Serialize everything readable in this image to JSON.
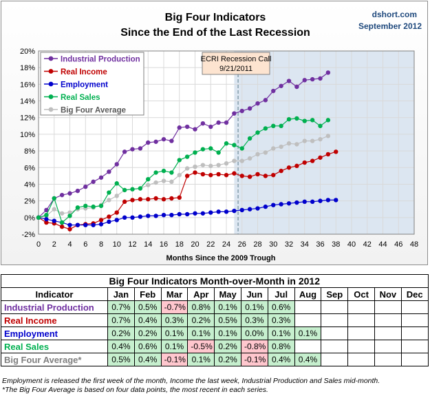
{
  "chart_data": {
    "type": "line",
    "title": "Big Four Indicators",
    "subtitle": "Since the End of the Last Recession",
    "source": "dshort.com",
    "date": "September 2012",
    "xlabel": "Months Since the 2009 Trough",
    "x_ticks": [
      "0",
      "2",
      "4",
      "6",
      "8",
      "10",
      "12",
      "14",
      "16",
      "18",
      "20",
      "22",
      "24",
      "26",
      "28",
      "30",
      "32",
      "34",
      "36",
      "38",
      "40",
      "42",
      "44",
      "46",
      "48"
    ],
    "y_ticks": [
      "20%",
      "18%",
      "16%",
      "14%",
      "12%",
      "10%",
      "8%",
      "6%",
      "4%",
      "2%",
      "0%",
      "-2%"
    ],
    "xlim": [
      0,
      48
    ],
    "ylim": [
      -2,
      20
    ],
    "annotation": {
      "label_line1": "ECRI Recession Call",
      "label_line2": "9/21/2011",
      "x": 25.5
    },
    "shaded_from_x": 25,
    "series": [
      {
        "name": "Industrial Production",
        "color": "#7030a0",
        "values": [
          0,
          0.9,
          2.3,
          2.7,
          2.9,
          3.2,
          3.7,
          4.3,
          4.8,
          5.5,
          6.4,
          7.9,
          8.2,
          8.3,
          9.0,
          9.1,
          9.4,
          9.2,
          10.8,
          10.9,
          10.6,
          11.3,
          10.9,
          11.4,
          11.4,
          12.5,
          12.8,
          13.1,
          13.7,
          14.1,
          15.2,
          15.8,
          16.4,
          15.7,
          16.5,
          16.6,
          16.7,
          17.4
        ]
      },
      {
        "name": "Real Income",
        "color": "#c00000",
        "values": [
          0,
          -0.6,
          -0.7,
          -1.1,
          -1.4,
          -0.9,
          -0.8,
          -0.7,
          -0.3,
          0.1,
          0.6,
          1.9,
          2.1,
          2.2,
          2.2,
          2.3,
          2.2,
          2.3,
          2.4,
          5.0,
          5.4,
          5.2,
          5.1,
          5.2,
          5.1,
          5.3,
          5.0,
          4.9,
          5.2,
          5.0,
          5.1,
          5.6,
          6.0,
          6.2,
          6.6,
          6.8,
          7.2,
          7.6,
          7.9
        ]
      },
      {
        "name": "Employment",
        "color": "#0000cc",
        "values": [
          0,
          -0.2,
          -0.4,
          -0.6,
          -0.9,
          -0.9,
          -0.9,
          -0.9,
          -0.8,
          -0.5,
          -0.3,
          0,
          0,
          0.1,
          0.2,
          0.2,
          0.3,
          0.3,
          0.4,
          0.4,
          0.5,
          0.5,
          0.6,
          0.7,
          0.7,
          0.8,
          0.9,
          1.0,
          1.1,
          1.3,
          1.5,
          1.6,
          1.7,
          1.8,
          1.9,
          1.9,
          2.0,
          2.1,
          2.1
        ]
      },
      {
        "name": "Real Sales",
        "color": "#00b050",
        "values": [
          0,
          0.3,
          2.3,
          -0.6,
          0.2,
          1.2,
          1.4,
          1.3,
          1.4,
          3.0,
          4.1,
          3.3,
          3.4,
          3.5,
          4.6,
          5.4,
          5.6,
          5.4,
          6.9,
          7.3,
          7.8,
          8.2,
          8.3,
          7.8,
          8.9,
          8.7,
          8.3,
          9.5,
          10.2,
          10.7,
          11.0,
          11.0,
          11.8,
          11.9,
          11.6,
          11.7,
          11.0,
          11.7
        ]
      },
      {
        "name": "Big Four Average",
        "color": "#bfbfbf",
        "values": [
          0,
          0.2,
          1.0,
          0.5,
          0.6,
          1.0,
          1.1,
          1.2,
          1.5,
          2.1,
          2.6,
          3.3,
          3.4,
          3.5,
          3.9,
          4.2,
          4.4,
          4.3,
          5.1,
          5.9,
          6.1,
          6.3,
          6.2,
          6.3,
          6.5,
          6.8,
          6.8,
          7.1,
          7.6,
          7.8,
          8.3,
          8.5,
          8.9,
          8.8,
          9.2,
          9.2,
          9.4,
          9.8
        ]
      }
    ]
  },
  "table": {
    "title": "Big Four Indicators Month-over-Month in 2012",
    "columns": [
      "Indicator",
      "Jan",
      "Feb",
      "Mar",
      "Apr",
      "May",
      "Jun",
      "Jul",
      "Aug",
      "Sep",
      "Oct",
      "Nov",
      "Dec"
    ],
    "rows": [
      {
        "name": "Industrial Production",
        "color": "#7030a0",
        "cells": [
          "0.7%",
          "0.5%",
          "-0.7%",
          "0.8%",
          "0.1%",
          "0.1%",
          "0.6%",
          "",
          "",
          "",
          "",
          ""
        ]
      },
      {
        "name": "Real Income",
        "color": "#c00000",
        "cells": [
          "0.7%",
          "0.4%",
          "0.3%",
          "0.2%",
          "0.5%",
          "0.3%",
          "0.3%",
          "",
          "",
          "",
          "",
          ""
        ]
      },
      {
        "name": "Employment",
        "color": "#0000cc",
        "cells": [
          "0.2%",
          "0.2%",
          "0.1%",
          "0.1%",
          "0.1%",
          "0.0%",
          "0.1%",
          "0.1%",
          "",
          "",
          "",
          ""
        ]
      },
      {
        "name": "Real Sales",
        "color": "#00b050",
        "cells": [
          "0.4%",
          "0.6%",
          "0.1%",
          "-0.5%",
          "0.2%",
          "-0.8%",
          "0.8%",
          "",
          "",
          "",
          "",
          ""
        ]
      },
      {
        "name": "Big Four Average*",
        "color": "#7f7f7f",
        "cells": [
          "0.5%",
          "0.4%",
          "-0.1%",
          "0.1%",
          "0.2%",
          "-0.1%",
          "0.4%",
          "0.4%",
          "",
          "",
          "",
          ""
        ]
      }
    ],
    "positive_color": "#c6efce",
    "negative_color": "#ffc7ce"
  },
  "footnotes": [
    "Employment is released the first week of the month, Income the last week, Industrial Production and Sales mid-month.",
    "*The Big Four Average is based on four data points, the most recent in each series."
  ]
}
